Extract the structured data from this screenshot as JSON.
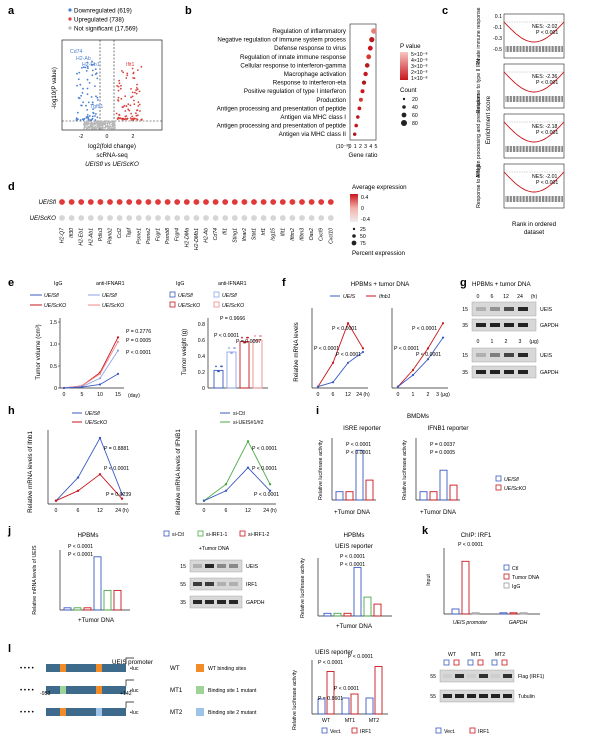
{
  "panels": {
    "a": {
      "letter": "a",
      "legend": [
        "Downregulated (619)",
        "Upregulated (738)",
        "Not significant (17,569)"
      ],
      "colors": {
        "down": "#4a7fd4",
        "up": "#d9413c",
        "ns": "#b8b8b8"
      },
      "ylabel": "-log10(P value)",
      "xlabel": "log2(fold change)",
      "subtitle1": "scRNA-seq",
      "subtitle2": "UEISfl vs UEIScKO",
      "ticks_x": [
        "-2",
        "0",
        "2"
      ],
      "gene_labels": [
        "Cd74",
        "H2-Ab",
        "H2-Eb1",
        "Tgfb1",
        "Ifit1"
      ]
    },
    "b": {
      "letter": "b",
      "terms": [
        "Regulation of inflammatory",
        "Negative regulation of immune system process",
        "Defense response to virus",
        "Regulation of innate immune response",
        "Cellular response to interferon-gamma",
        "Macrophage activation",
        "Response to interferon-eta",
        "Positive regulation of type I interferon",
        "Production",
        "Antigen processing and presentation of peptide",
        "Antigen via MHC class I",
        "Antigen processing and presentation of peptide",
        "Antigen via MHC class II"
      ],
      "xlabel": "Gene ratio",
      "ticks_x": [
        "0",
        "1",
        "2",
        "3",
        "4",
        "5"
      ],
      "pvalue_title": "P value",
      "pvalue_ticks": [
        "5×10⁻⁸",
        "4×10⁻⁸",
        "3×10⁻⁸",
        "2×10⁻⁸",
        "1×10⁻⁸"
      ],
      "count_title": "Count",
      "count_ticks": [
        "20",
        "40",
        "60",
        "80"
      ],
      "x_note": "(10⁻³)"
    },
    "c": {
      "letter": "c",
      "rows": [
        {
          "label": "Innate immune response",
          "nes": "NES: -2.02",
          "p": "P < 0.001"
        },
        {
          "label": "Response to type II IFN",
          "nes": "NES: -2.36",
          "p": "P < 0.001"
        },
        {
          "label": "Antigen processing and presentation",
          "nes": "NES: -2.18",
          "p": "P < 0.001"
        },
        {
          "label": "Response to IFN-β",
          "nes": "NES: -2.01",
          "p": "P < 0.001"
        }
      ],
      "ylabel": "Enrichment score",
      "xlabel1": "Rank in ordered",
      "xlabel2": "dataset",
      "yticks": [
        "0.1",
        "-0.1",
        "-0.3",
        "-0.5"
      ]
    },
    "d": {
      "letter": "d",
      "rows": [
        "UEISfl",
        "UEIScKO"
      ],
      "genes": [
        "H2-Q7",
        "Ifi30",
        "H2-Eb1",
        "H2-Ab1",
        "Pdlu3",
        "Pianb2",
        "Ccl2",
        "Tapf",
        "Psme1",
        "Psme2",
        "Fcgr1",
        "Psmb8",
        "Fcgr4",
        "H2-DMa",
        "H2-DMb1",
        "H2-Ab",
        "Cd74",
        "Ifi1",
        "Sting1",
        "Ifnar2",
        "Stat1",
        "Irf1",
        "Isg15",
        "Ifit1",
        "Ifitm2",
        "Ifitm3",
        "Oas2",
        "Cxcl9",
        "Cxcl10"
      ],
      "avg_title": "Average expression",
      "avg_ticks": [
        "0.4",
        "0",
        "-0.4"
      ],
      "pct_title": "Percent expression",
      "pct_ticks": [
        "25",
        "50",
        "75"
      ]
    },
    "e": {
      "letter": "e",
      "legend": [
        "IgG",
        "anti-IFNAR1",
        "UEISfl",
        "UEISfl",
        "UEIScKO",
        "UEIScKO"
      ],
      "legend2": [
        "IgG",
        "anti-IFNAR1",
        "UEISfl",
        "UEISfl",
        "UEIScKO",
        "UEIScKO"
      ],
      "ylabel1": "Tumor volume (cm³)",
      "ylabel2": "Tumor weight (g)",
      "xlabel1": "(day)",
      "xticks1": [
        "0",
        "5",
        "10",
        "15"
      ],
      "yticks1": [
        "0",
        "0.5",
        "1.0",
        "1.5"
      ],
      "yticks2": [
        "0",
        "0.2",
        "0.4",
        "0.6",
        "0.8"
      ],
      "pvals1": [
        "P = 0.2776",
        "P = 0.0005",
        "P < 0.0001"
      ],
      "pvals2": [
        "P = 0.9666",
        "P < 0.0001",
        "P = 0.0007"
      ]
    },
    "f": {
      "letter": "f",
      "title": "HPBMs + tumor DNA",
      "legend": [
        "UEIS",
        "Ifnb1"
      ],
      "ylabel": "Relative mRNA levels",
      "xticks1": [
        "0",
        "6",
        "12",
        "24 (h)"
      ],
      "xticks2": [
        "0",
        "1",
        "2",
        "3 (μg)"
      ],
      "pvals": [
        "P < 0.0001",
        "P < 0.0001",
        "P < 0.0001",
        "P < 0.0001",
        "P < 0.0001",
        "P < 0.0001"
      ]
    },
    "g": {
      "letter": "g",
      "title": "HPBMs + tumor DNA",
      "row1_ticks": [
        "0",
        "6",
        "12",
        "24",
        "(h)"
      ],
      "row2_ticks": [
        "0",
        "1",
        "2",
        "3",
        "(μg)"
      ],
      "bands": [
        "UEIS",
        "GAPDH",
        "UEIS",
        "GAPDH"
      ],
      "mw": [
        "15",
        "35",
        "15",
        "35"
      ]
    },
    "h": {
      "letter": "h",
      "legend1": [
        "UEISfl",
        "UEIScKO"
      ],
      "legend2": [
        "si-Ctl",
        "si-UEIS#1/#2"
      ],
      "ylabel1": "Relative mRNA levels of Ifnb1",
      "ylabel2": "Relative mRNA levels of IFNB1",
      "xticks": [
        "0",
        "6",
        "12",
        "24 (h)"
      ],
      "pvals1": [
        "P = 0.8881",
        "P < 0.0001",
        "P = 0.0239"
      ],
      "pvals2": [
        "P < 0.0001",
        "P < 0.0001",
        "P < 0.0001"
      ]
    },
    "i": {
      "letter": "i",
      "title": "BMDMs",
      "sub1": "ISRE reporter",
      "sub2": "IFNB1 reporter",
      "ylabel": "Relative luciferase activity",
      "xlabel": "+Tumor DNA",
      "legend": [
        "UEISfl",
        "UEIScKO"
      ],
      "pvals1": [
        "P < 0.0001",
        "P < 0.0001"
      ],
      "pvals2": [
        "P = 0.0037",
        "P = 0.0005"
      ]
    },
    "j": {
      "letter": "j",
      "title1": "HPBMs",
      "title2": "HPBMs",
      "sub2": "UEIS reporter",
      "legend": [
        "si-Ctl",
        "si-IRF1-1",
        "si-IRF1-2"
      ],
      "ylabel1": "Relative mRNA levels of UEIS",
      "ylabel2": "Relative luciferase activity",
      "xlabel": "+Tumor DNA",
      "blot_title": "+Tumor DNA",
      "bands": [
        "UEIS",
        "IRF1",
        "GAPDH"
      ],
      "mw": [
        "15",
        "55",
        "35"
      ],
      "pvals1": [
        "P < 0.0001",
        "P < 0.0001"
      ],
      "pvals2": [
        "P < 0.0001",
        "P < 0.0001"
      ]
    },
    "k": {
      "letter": "k",
      "title": "ChIP: IRF1",
      "ylabel": "Input",
      "legend": [
        "Ctl",
        "Tumor DNA",
        "IgG"
      ],
      "xlabels": [
        "UEIS promoter",
        "GAPDH"
      ],
      "pval": "P < 0.0001"
    },
    "l": {
      "letter": "l",
      "promoter": "UEIS promoter",
      "luc": "luc",
      "pos1": "-953",
      "pos2": "+142",
      "constructs": [
        "WT",
        "MT1",
        "MT2"
      ],
      "keys": [
        "WT binding sites",
        "Binding site 1 mutant",
        "Binding site 2 mutant"
      ],
      "chart_title": "UEIS reporter",
      "ylabel": "Relative luciferase activity",
      "xcats": [
        "WT",
        "MT1",
        "MT2"
      ],
      "legend": [
        "Vect.",
        "IRF1"
      ],
      "pvals": [
        "P < 0.0001",
        "P = 0.8601",
        "P < 0.0001",
        "P < 0.0001"
      ],
      "blot_bands": [
        "Flag (IRF1)",
        "Tubulin"
      ],
      "blot_mw": [
        "55",
        "55"
      ],
      "blot_cols": [
        "WT",
        "MT1",
        "MT2"
      ]
    }
  }
}
